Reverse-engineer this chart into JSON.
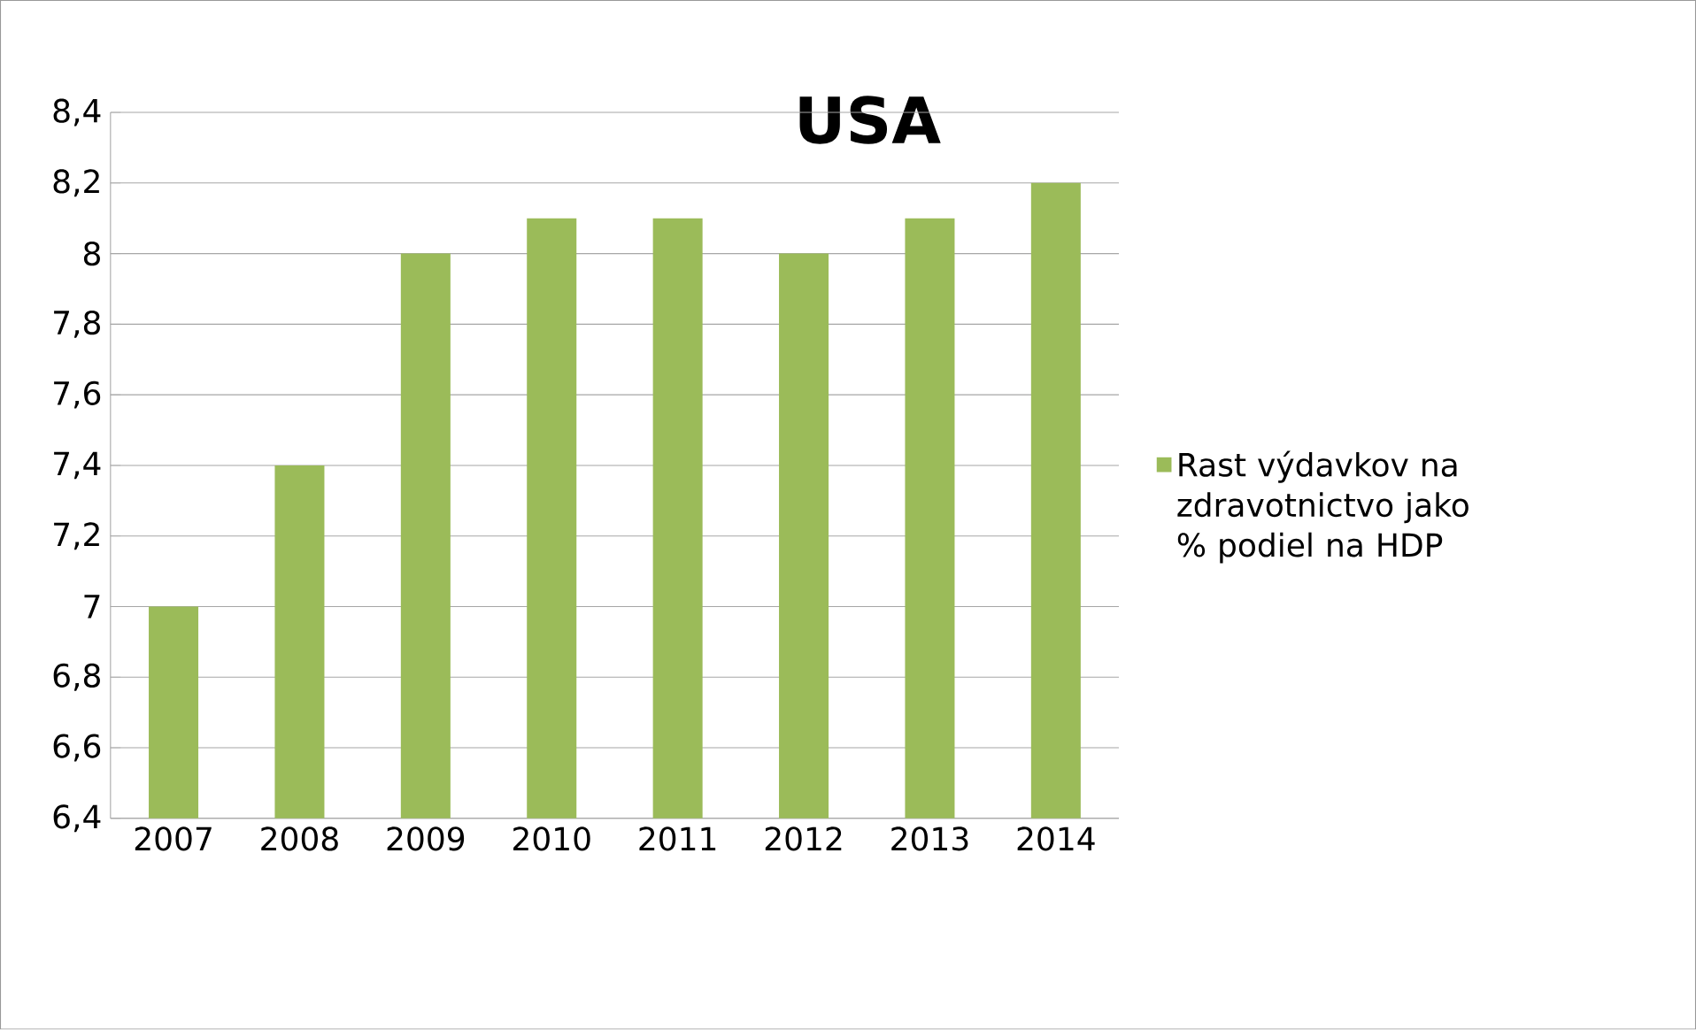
{
  "chart_data": {
    "type": "bar",
    "title": "USA",
    "categories": [
      "2007",
      "2008",
      "2009",
      "2010",
      "2011",
      "2012",
      "2013",
      "2014"
    ],
    "series": [
      {
        "name": "Rast výdavkov na zdravotnictvo jako % podiel na HDP",
        "color": "#9bbb59",
        "values": [
          7.0,
          7.4,
          8.0,
          8.1,
          8.1,
          8.0,
          8.1,
          8.2
        ]
      }
    ],
    "ylim": [
      6.4,
      8.4
    ],
    "yticks": [
      {
        "value": 6.4,
        "label": "6,4"
      },
      {
        "value": 6.6,
        "label": "6,6"
      },
      {
        "value": 6.8,
        "label": "6,8"
      },
      {
        "value": 7,
        "label": "7"
      },
      {
        "value": 7.2,
        "label": "7,2"
      },
      {
        "value": 7.4,
        "label": "7,4"
      },
      {
        "value": 7.6,
        "label": "7,6"
      },
      {
        "value": 7.8,
        "label": "7,8"
      },
      {
        "value": 8,
        "label": "8"
      },
      {
        "value": 8.2,
        "label": "8,2"
      },
      {
        "value": 8.4,
        "label": "8,4"
      }
    ],
    "grid": "y",
    "legend": "right"
  }
}
